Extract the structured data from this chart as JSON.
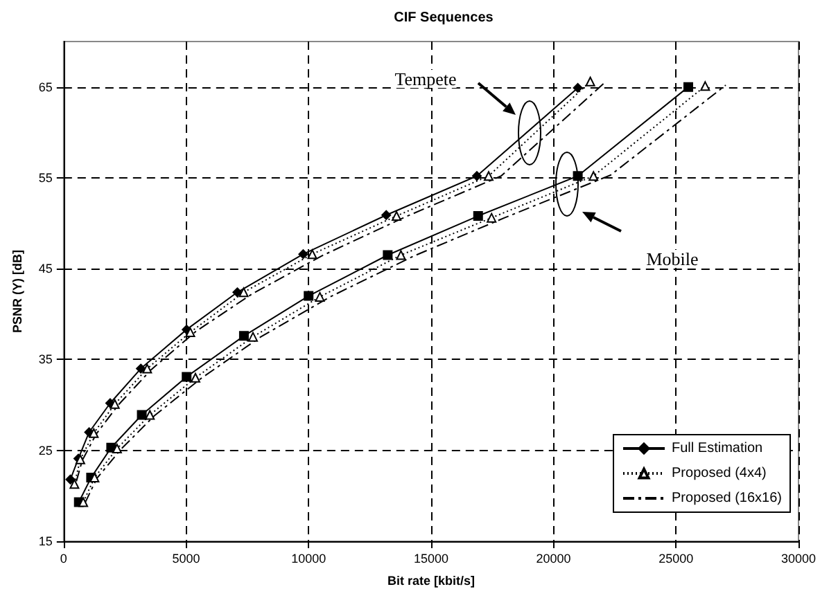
{
  "chart_data": {
    "type": "line",
    "title": "CIF Sequences",
    "xlabel": "Bit rate [kbit/s]",
    "ylabel": "PSNR (Y) [dB]",
    "xlim": [
      0,
      30000
    ],
    "xticks": [
      0,
      5000,
      10000,
      15000,
      20000,
      25000,
      30000
    ],
    "ylim": [
      15,
      70
    ],
    "yticks": [
      15,
      25,
      35,
      45,
      55,
      65
    ],
    "grid": true,
    "legend": "bottom right",
    "annotations": [
      "Tempete",
      "Mobile"
    ],
    "series": [
      {
        "name": "Full Estimation",
        "color": "#000000",
        "marker": "diamond",
        "line_style": "solid",
        "x": [
          275,
          600,
          1040,
          1900,
          3150,
          5020,
          7090,
          9780,
          13170,
          16870,
          20990
        ],
        "values": [
          21.8,
          24.1,
          27.0,
          30.2,
          34.0,
          38.3,
          42.4,
          46.6,
          50.9,
          55.2,
          64.9
        ]
      },
      {
        "name": "Proposed (4x4)",
        "color": "#000000",
        "marker": "triangle",
        "line_style": "dotted",
        "x": [
          440,
          680,
          1230,
          2090,
          3410,
          5170,
          7350,
          10150,
          13590,
          17350,
          21500
        ],
        "values": [
          21.3,
          24.0,
          26.9,
          30.1,
          34.0,
          38.0,
          42.4,
          46.6,
          50.8,
          55.2,
          65.6
        ]
      },
      {
        "name": "Proposed (16x16)",
        "color": "#000000",
        "marker": "none",
        "line_style": "dashed",
        "x": [
          520,
          760,
          1330,
          2230,
          3580,
          5400,
          7680,
          10530,
          13950,
          17860,
          22140
        ],
        "values": [
          21.6,
          23.9,
          26.8,
          30.0,
          33.9,
          38.1,
          42.2,
          46.4,
          50.7,
          55.2,
          65.6
        ]
      },
      {
        "color": "#000000",
        "marker": "square",
        "line_style": "solid",
        "x": [
          620,
          1120,
          1940,
          3190,
          5020,
          7360,
          10000,
          13230,
          16920,
          20990,
          25500
        ],
        "values": [
          19.3,
          22.0,
          25.3,
          28.9,
          33.1,
          37.6,
          42.0,
          46.5,
          50.8,
          55.2,
          65.0
        ]
      },
      {
        "color": "#000000",
        "marker": "triangle",
        "line_style": "dotted",
        "x": [
          800,
          1260,
          2180,
          3520,
          5380,
          7730,
          10460,
          13770,
          17470,
          21630,
          26190
        ],
        "values": [
          19.3,
          22.0,
          25.2,
          28.9,
          33.0,
          37.5,
          41.9,
          46.5,
          50.6,
          55.2,
          65.1
        ]
      },
      {
        "color": "#000000",
        "marker": "none",
        "line_style": "dashed",
        "x": [
          870,
          1350,
          2330,
          3700,
          5600,
          8050,
          10880,
          14300,
          18000,
          22330,
          27030
        ],
        "values": [
          19.2,
          21.9,
          25.1,
          28.8,
          32.9,
          37.5,
          41.9,
          46.4,
          50.6,
          55.3,
          65.2
        ]
      }
    ]
  }
}
